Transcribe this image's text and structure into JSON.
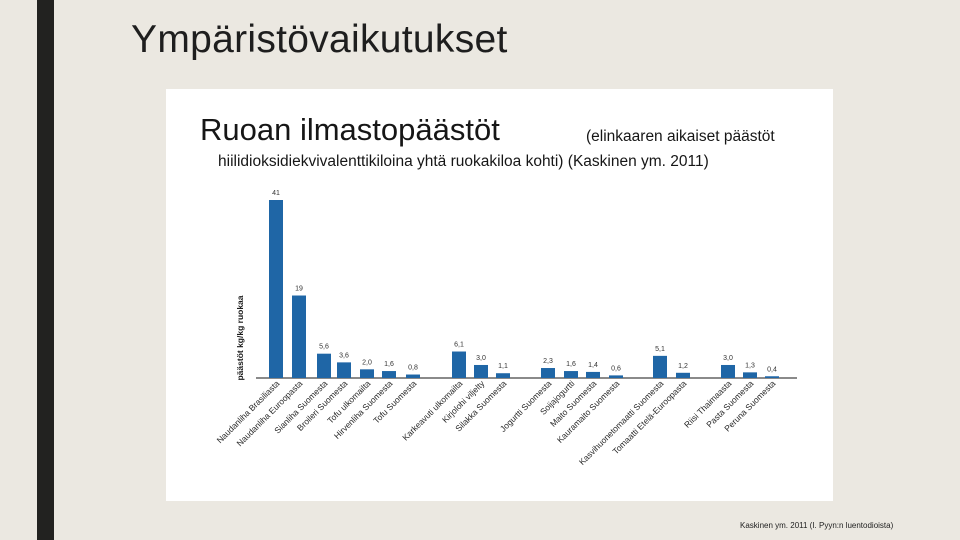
{
  "slide": {
    "title": "Ympäristövaikutukset",
    "source_caption": "Kaskinen ym. 2011 (I. Pyyn:n luentodioista)"
  },
  "chart_data": {
    "type": "bar",
    "title": "Ruoan ilmastopäästöt",
    "title_note": "(elinkaaren aikaiset päästöt",
    "subtitle": "hiilidioksidiekvivalenttikiloina yhtä ruokakiloa kohti) (Kaskinen ym. 2011)",
    "ylabel": "päästöt kg/kg ruokaa",
    "xlabel": "",
    "ylim": [
      0,
      41
    ],
    "grid": false,
    "bar_color": "#1f66a6",
    "categories": [
      "Naudanliha Brasiliasta",
      "Naudanliha Euroopasta",
      "Sianliha Suomesta",
      "Broileri Suomesta",
      "Tofu ulkomailta",
      "Hirvenliha Suomesta",
      "Tofu Suomesta",
      "Karkeavuti ulkomailta",
      "Kirjolohi viljelty",
      "Silakka Suomesta",
      "Jogurtti Suomesta",
      "Soijajogurtti",
      "Maito Suomesta",
      "Kauramaito Suomesta",
      "Kasvihuonetomaatti Suomesta",
      "Tomaatti Etelä-Euroopasta",
      "Riisi Thaimaasta",
      "Pasta Suomesta",
      "Peruna Suomesta"
    ],
    "values": [
      41,
      19,
      5.6,
      3.6,
      2.0,
      1.6,
      0.8,
      6.1,
      3.0,
      1.1,
      2.3,
      1.6,
      1.4,
      0.6,
      5.1,
      1.2,
      3.0,
      1.3,
      0.4
    ],
    "value_labels": [
      "41",
      "19",
      "5,6",
      "3,6",
      "2,0",
      "1,6",
      "0,8",
      "6,1",
      "3,0",
      "1,1",
      "2,3",
      "1,6",
      "1,4",
      "0,6",
      "5,1",
      "1,2",
      "3,0",
      "1,3",
      "0,4"
    ]
  }
}
